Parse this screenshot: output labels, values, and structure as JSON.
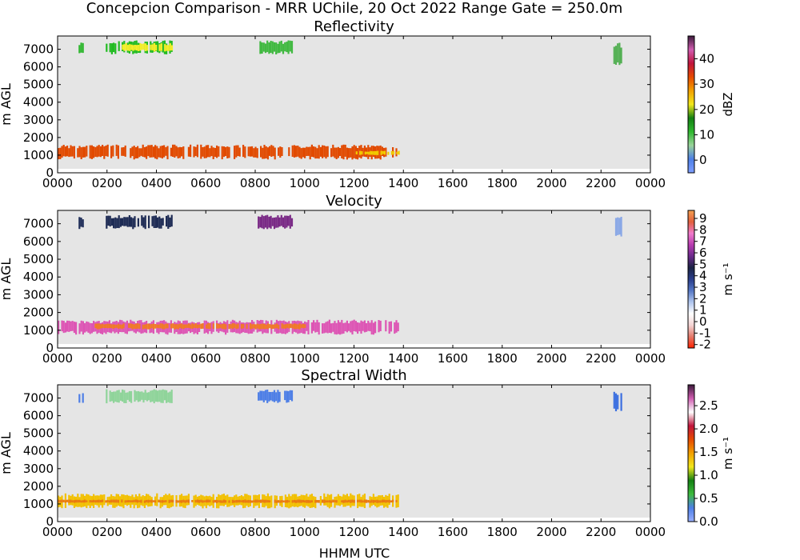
{
  "figure": {
    "suptitle": "Concepcion Comparison - MRR UChile, 20 Oct 2022 Range Gate = 250.0m",
    "xlabel": "HHMM UTC"
  },
  "chart_data": [
    {
      "type": "heatmap",
      "title": "Reflectivity",
      "ylabel": "m AGL",
      "colorbar_label": "dBZ",
      "xlim": [
        0,
        24
      ],
      "ylim": [
        0,
        7750
      ],
      "xticks": [
        "0000",
        "0200",
        "0400",
        "0600",
        "0800",
        "1000",
        "1200",
        "1400",
        "1600",
        "1800",
        "2000",
        "2200",
        "0000"
      ],
      "yticks": [
        0,
        1000,
        2000,
        3000,
        4000,
        5000,
        6000,
        7000
      ],
      "colorbar": {
        "min": -5,
        "max": 49,
        "ticks": [
          "0",
          "10",
          "20",
          "30",
          "40"
        ],
        "tick_values": [
          0,
          10,
          20,
          30,
          40
        ]
      },
      "background_color": "#e5e5e5",
      "echoes": [
        {
          "t_start": 0.0,
          "t_end": 13.8,
          "alt_low": 750,
          "alt_high": 1600,
          "color": "#e14a00"
        },
        {
          "t_start": 12.0,
          "t_end": 13.8,
          "alt_low": 1000,
          "alt_high": 1250,
          "color": "#f2cc00"
        },
        {
          "t_start": 0.85,
          "t_end": 1.05,
          "alt_low": 6700,
          "alt_high": 7400,
          "color": "#33b833"
        },
        {
          "t_start": 1.95,
          "t_end": 4.6,
          "alt_low": 6700,
          "alt_high": 7500,
          "color": "#22bb22"
        },
        {
          "t_start": 2.6,
          "t_end": 4.6,
          "alt_low": 6850,
          "alt_high": 7350,
          "color": "#f3ee2a"
        },
        {
          "t_start": 8.1,
          "t_end": 9.5,
          "alt_low": 6700,
          "alt_high": 7500,
          "color": "#41b941"
        },
        {
          "t_start": 22.5,
          "t_end": 22.8,
          "alt_low": 6100,
          "alt_high": 7400,
          "color": "#54b054"
        }
      ]
    },
    {
      "type": "heatmap",
      "title": "Velocity",
      "ylabel": "m AGL",
      "colorbar_label": "m s⁻¹",
      "xlim": [
        0,
        24
      ],
      "ylim": [
        0,
        7750
      ],
      "xticks": [
        "0000",
        "0200",
        "0400",
        "0600",
        "0800",
        "1000",
        "1200",
        "1400",
        "1600",
        "1800",
        "2000",
        "2200",
        "0000"
      ],
      "yticks": [
        0,
        1000,
        2000,
        3000,
        4000,
        5000,
        6000,
        7000
      ],
      "colorbar": {
        "min": -2.3,
        "max": 9.7,
        "ticks": [
          "9",
          "8",
          "7",
          "6",
          "5",
          "4",
          "3",
          "2",
          "1",
          "0",
          "-1",
          "-2"
        ],
        "tick_values": [
          9,
          8,
          7,
          6,
          5,
          4,
          3,
          2,
          1,
          0,
          -1,
          -2
        ]
      },
      "background_color": "#e5e5e5",
      "echoes": [
        {
          "t_start": 0.0,
          "t_end": 13.8,
          "alt_low": 750,
          "alt_high": 1600,
          "color": "#dd55b4"
        },
        {
          "t_start": 1.5,
          "t_end": 10.0,
          "alt_low": 1050,
          "alt_high": 1400,
          "color": "#f07a28"
        },
        {
          "t_start": 0.85,
          "t_end": 1.05,
          "alt_low": 6700,
          "alt_high": 7400,
          "color": "#22305a"
        },
        {
          "t_start": 1.95,
          "t_end": 4.6,
          "alt_low": 6700,
          "alt_high": 7500,
          "color": "#1e2c55"
        },
        {
          "t_start": 8.1,
          "t_end": 9.5,
          "alt_low": 6700,
          "alt_high": 7500,
          "color": "#7a2a86"
        },
        {
          "t_start": 22.5,
          "t_end": 22.8,
          "alt_low": 6100,
          "alt_high": 7400,
          "color": "#8aa8e6"
        }
      ]
    },
    {
      "type": "heatmap",
      "title": "Spectral Width",
      "ylabel": "m AGL",
      "colorbar_label": "m s⁻¹",
      "xlim": [
        0,
        24
      ],
      "ylim": [
        0,
        7750
      ],
      "xticks": [
        "0000",
        "0200",
        "0400",
        "0600",
        "0800",
        "1000",
        "1200",
        "1400",
        "1600",
        "1800",
        "2000",
        "2200",
        "0000"
      ],
      "yticks": [
        0,
        1000,
        2000,
        3000,
        4000,
        5000,
        6000,
        7000
      ],
      "colorbar": {
        "min": 0.0,
        "max": 2.95,
        "ticks": [
          "0.0",
          "0.5",
          "1.0",
          "1.5",
          "2.0",
          "2.5"
        ],
        "tick_values": [
          0.0,
          0.5,
          1.0,
          1.5,
          2.0,
          2.5
        ]
      },
      "background_color": "#e5e5e5",
      "echoes": [
        {
          "t_start": 0.0,
          "t_end": 13.8,
          "alt_low": 750,
          "alt_high": 1600,
          "color": "#f2c000"
        },
        {
          "t_start": 0.0,
          "t_end": 13.8,
          "alt_low": 1050,
          "alt_high": 1250,
          "color": "#ea7a10"
        },
        {
          "t_start": 0.85,
          "t_end": 1.05,
          "alt_low": 6700,
          "alt_high": 7400,
          "color": "#4e7fe6"
        },
        {
          "t_start": 1.95,
          "t_end": 4.6,
          "alt_low": 6700,
          "alt_high": 7500,
          "color": "#8fd49a"
        },
        {
          "t_start": 8.1,
          "t_end": 9.5,
          "alt_low": 6700,
          "alt_high": 7500,
          "color": "#4e7fe6"
        },
        {
          "t_start": 22.5,
          "t_end": 22.8,
          "alt_low": 6100,
          "alt_high": 7400,
          "color": "#3b6fe0"
        }
      ]
    }
  ],
  "colormaps": {
    "reflectivity": [
      "#7f9fff",
      "#4d7fe6",
      "#9ad39a",
      "#2eb82e",
      "#138013",
      "#f2e71c",
      "#f2a000",
      "#e64a00",
      "#c0143c",
      "#d05cb0",
      "#3b1a3b"
    ],
    "velocity": [
      "#ff2200",
      "#e47a6b",
      "#f4d5d5",
      "#ffffff",
      "#b0c6ef",
      "#5577c5",
      "#2a3d8a",
      "#1b2344",
      "#6c2a8c",
      "#b83cb0",
      "#f07acb",
      "#e2603c",
      "#f4a050"
    ],
    "spectral_width": [
      "#9ab0ff",
      "#4d7fe6",
      "#3dbb3d",
      "#138013",
      "#f2e71c",
      "#f2a000",
      "#e64a00",
      "#c0143c",
      "#ffffff",
      "#d05cb0",
      "#3b1a3b"
    ]
  }
}
